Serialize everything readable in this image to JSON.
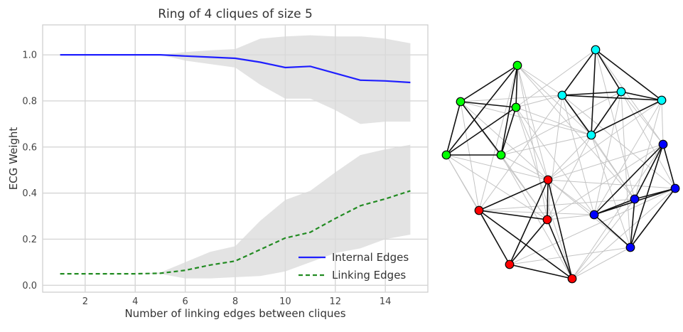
{
  "chart_data": [
    {
      "type": "line",
      "title": "Ring of 4 cliques of size 5",
      "xlabel": "Number of linking edges between cliques",
      "ylabel": "ECG Weight",
      "xlim": [
        0.3,
        15.7
      ],
      "ylim": [
        -0.03,
        1.13
      ],
      "xticks": [
        2,
        4,
        6,
        8,
        10,
        12,
        14
      ],
      "yticks": [
        0.0,
        0.2,
        0.4,
        0.6,
        0.8,
        1.0
      ],
      "ytick_labels": [
        "0.0",
        "0.2",
        "0.4",
        "0.6",
        "0.8",
        "1.0"
      ],
      "grid": true,
      "legend_position": "lower-right",
      "x": [
        1,
        2,
        3,
        4,
        5,
        6,
        7,
        8,
        9,
        10,
        11,
        12,
        13,
        14,
        15
      ],
      "series": [
        {
          "name": "Internal Edges",
          "style": "solid",
          "color": "#1f1fff",
          "values": [
            1.0,
            1.0,
            1.0,
            1.0,
            1.0,
            0.995,
            0.99,
            0.985,
            0.968,
            0.945,
            0.95,
            0.92,
            0.89,
            0.887,
            0.88
          ],
          "band_lower": [
            1.0,
            1.0,
            1.0,
            1.0,
            1.0,
            0.975,
            0.96,
            0.945,
            0.87,
            0.81,
            0.81,
            0.76,
            0.7,
            0.71,
            0.71
          ],
          "band_upper": [
            1.0,
            1.0,
            1.0,
            1.0,
            1.0,
            1.012,
            1.02,
            1.025,
            1.07,
            1.08,
            1.085,
            1.08,
            1.08,
            1.07,
            1.05
          ]
        },
        {
          "name": "Linking Edges",
          "style": "dashed",
          "color": "#228b22",
          "values": [
            0.05,
            0.05,
            0.05,
            0.05,
            0.052,
            0.065,
            0.088,
            0.105,
            0.155,
            0.205,
            0.23,
            0.29,
            0.345,
            0.375,
            0.41
          ],
          "band_lower": [
            0.05,
            0.05,
            0.05,
            0.05,
            0.05,
            0.03,
            0.03,
            0.035,
            0.04,
            0.06,
            0.1,
            0.14,
            0.16,
            0.2,
            0.22
          ],
          "band_upper": [
            0.05,
            0.05,
            0.05,
            0.05,
            0.055,
            0.1,
            0.145,
            0.17,
            0.28,
            0.37,
            0.41,
            0.49,
            0.565,
            0.59,
            0.61
          ]
        }
      ]
    },
    {
      "type": "network",
      "communities": [
        {
          "color": "#00ff00",
          "nodes": [
            0,
            1,
            2,
            3,
            4
          ]
        },
        {
          "color": "#00ffff",
          "nodes": [
            5,
            6,
            7,
            8,
            9
          ]
        },
        {
          "color": "#0000ff",
          "nodes": [
            10,
            11,
            12,
            13,
            14
          ]
        },
        {
          "color": "#ff0000",
          "nodes": [
            15,
            16,
            17,
            18,
            19
          ]
        }
      ]
    }
  ]
}
